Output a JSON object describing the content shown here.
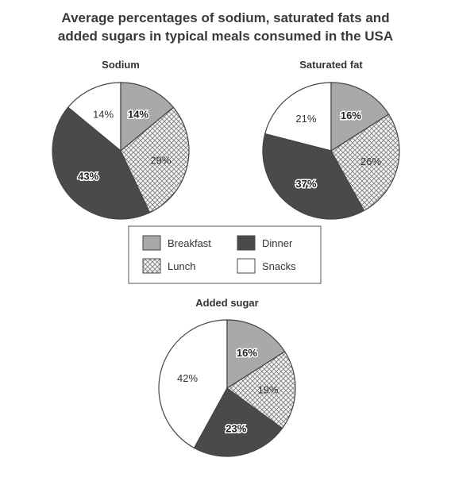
{
  "title_line1": "Average percentages of sodium, saturated fats and",
  "title_line2": "added sugars in typical meals consumed in the USA",
  "colors": {
    "breakfast": "#a9a9a9",
    "dinner": "#4a4a4a",
    "lunch_pattern_bg": "#f4f4f4",
    "lunch_pattern_line": "#7a7a7a",
    "snacks": "#ffffff",
    "outline": "#444444"
  },
  "legend": {
    "items": [
      {
        "key": "breakfast",
        "label": "Breakfast"
      },
      {
        "key": "dinner",
        "label": "Dinner"
      },
      {
        "key": "lunch",
        "label": "Lunch"
      },
      {
        "key": "snacks",
        "label": "Snacks"
      }
    ]
  },
  "chart_data": [
    {
      "type": "pie",
      "title": "Sodium",
      "categories": [
        "Breakfast",
        "Lunch",
        "Dinner",
        "Snacks"
      ],
      "values": [
        14,
        29,
        43,
        14
      ],
      "labels": [
        "14%",
        "29%",
        "43%",
        "14%"
      ]
    },
    {
      "type": "pie",
      "title": "Saturated fat",
      "categories": [
        "Breakfast",
        "Lunch",
        "Dinner",
        "Snacks"
      ],
      "values": [
        16,
        26,
        37,
        21
      ],
      "labels": [
        "16%",
        "26%",
        "37%",
        "21%"
      ]
    },
    {
      "type": "pie",
      "title": "Added sugar",
      "categories": [
        "Breakfast",
        "Lunch",
        "Dinner",
        "Snacks"
      ],
      "values": [
        16,
        19,
        23,
        42
      ],
      "labels": [
        "16%",
        "19%",
        "23%",
        "42%"
      ]
    }
  ]
}
